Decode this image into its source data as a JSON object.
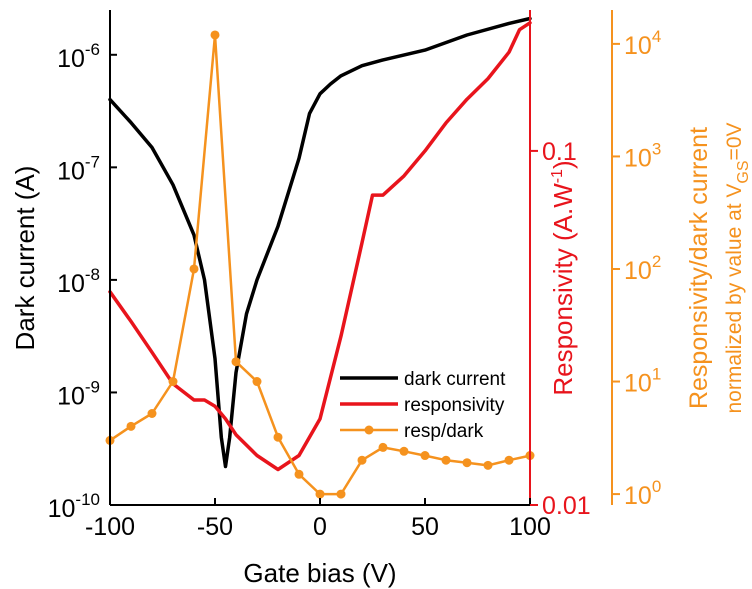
{
  "chart_data": {
    "type": "line",
    "xlabel": "Gate bias (V)",
    "xlim": [
      -100,
      100
    ],
    "xticks": [
      -100,
      -50,
      0,
      50,
      100
    ],
    "axes": {
      "left": {
        "label": "Dark current (A)",
        "scale": "log",
        "lim": [
          1e-10,
          2.5e-06
        ],
        "ticks": [
          {
            "value": 1e-10,
            "exp": "-10"
          },
          {
            "value": 1e-09,
            "exp": "-9"
          },
          {
            "value": 1e-08,
            "exp": "-8"
          },
          {
            "value": 1e-07,
            "exp": "-7"
          },
          {
            "value": 1e-06,
            "exp": "-6"
          }
        ],
        "color": "#000000"
      },
      "right1": {
        "label": "Responsivity (A.W",
        "label_sup": "-1",
        "label_end": ")",
        "scale": "log",
        "lim": [
          0.01,
          0.25
        ],
        "ticks": [
          {
            "value": 0.01,
            "text": "0.01"
          },
          {
            "value": 0.1,
            "text": "0.1"
          }
        ],
        "color": "#e8141c"
      },
      "right2": {
        "label_line1": "Responsivity/dark current",
        "label_line2": "normalized by value at V",
        "label_line2_sub": "GS",
        "label_line2_end": "=0V",
        "scale": "log",
        "lim": [
          0.8,
          20000
        ],
        "ticks": [
          {
            "value": 1,
            "exp": "0"
          },
          {
            "value": 10,
            "exp": "1"
          },
          {
            "value": 100,
            "exp": "2"
          },
          {
            "value": 1000,
            "exp": "3"
          },
          {
            "value": 10000,
            "exp": "4"
          }
        ],
        "color": "#f5921e"
      }
    },
    "legend": {
      "position": "center-right",
      "entries": [
        "dark current",
        "responsivity",
        "resp/dark"
      ]
    },
    "series": [
      {
        "name": "dark current",
        "axis": "left",
        "color": "#000000",
        "markers": false,
        "x": [
          -100,
          -90,
          -80,
          -70,
          -60,
          -55,
          -50,
          -47,
          -45,
          -43,
          -40,
          -35,
          -30,
          -20,
          -10,
          -5,
          0,
          5,
          10,
          20,
          30,
          50,
          70,
          90,
          100
        ],
        "y": [
          4e-07,
          2.5e-07,
          1.5e-07,
          7e-08,
          2.5e-08,
          1e-08,
          2e-09,
          4e-10,
          2.2e-10,
          4e-10,
          1.5e-09,
          5e-09,
          1e-08,
          3e-08,
          1.2e-07,
          3e-07,
          4.5e-07,
          5.5e-07,
          6.5e-07,
          8e-07,
          9e-07,
          1.1e-06,
          1.5e-06,
          1.9e-06,
          2.1e-06
        ]
      },
      {
        "name": "responsivity",
        "axis": "right1",
        "color": "#e8141c",
        "markers": false,
        "x": [
          -100,
          -90,
          -80,
          -70,
          -60,
          -55,
          -50,
          -45,
          -40,
          -30,
          -20,
          -10,
          0,
          10,
          20,
          25,
          30,
          40,
          50,
          60,
          70,
          80,
          90,
          95,
          100
        ],
        "y": [
          0.04,
          0.033,
          0.027,
          0.022,
          0.0198,
          0.0198,
          0.019,
          0.0175,
          0.0158,
          0.0138,
          0.0126,
          0.0138,
          0.0175,
          0.03,
          0.055,
          0.075,
          0.075,
          0.085,
          0.1,
          0.12,
          0.14,
          0.16,
          0.19,
          0.22,
          0.23
        ]
      },
      {
        "name": "resp/dark",
        "axis": "right2",
        "color": "#f5921e",
        "markers": true,
        "x": [
          -100,
          -90,
          -80,
          -70,
          -60,
          -50,
          -40,
          -30,
          -20,
          -10,
          0,
          10,
          20,
          30,
          40,
          50,
          60,
          70,
          80,
          90,
          100
        ],
        "y": [
          3,
          4,
          5.2,
          10,
          100,
          12000,
          15,
          10,
          3.2,
          1.5,
          1,
          1,
          2,
          2.6,
          2.4,
          2.2,
          2,
          1.9,
          1.8,
          2,
          2.2
        ]
      }
    ]
  }
}
